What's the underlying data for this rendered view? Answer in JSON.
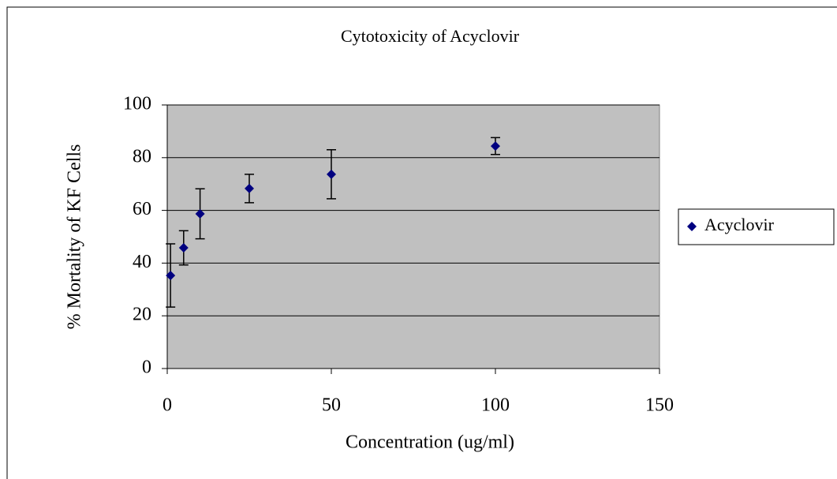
{
  "chart_data": {
    "type": "scatter",
    "title": "Cytotoxicity of Acyclovir",
    "x_label": "Concentration (ug/ml)",
    "y_label": "% Mortality of KF Cells",
    "series": [
      {
        "name": "Acyclovir",
        "color": "#000080",
        "x": [
          1,
          5,
          10,
          25,
          50,
          100
        ],
        "values": [
          35.3,
          45.8,
          58.7,
          68.3,
          73.7,
          84.4
        ],
        "errors": [
          12,
          6.5,
          9.5,
          5.4,
          9.3,
          3.2
        ]
      }
    ],
    "xlim": [
      0,
      150
    ],
    "xticks": [
      0,
      50,
      100,
      150
    ],
    "ylim": [
      0,
      100
    ],
    "yticks": [
      0,
      20,
      40,
      60,
      80,
      100
    ],
    "grid": true,
    "legend": "right",
    "plot_background": "#c0c0c0"
  }
}
